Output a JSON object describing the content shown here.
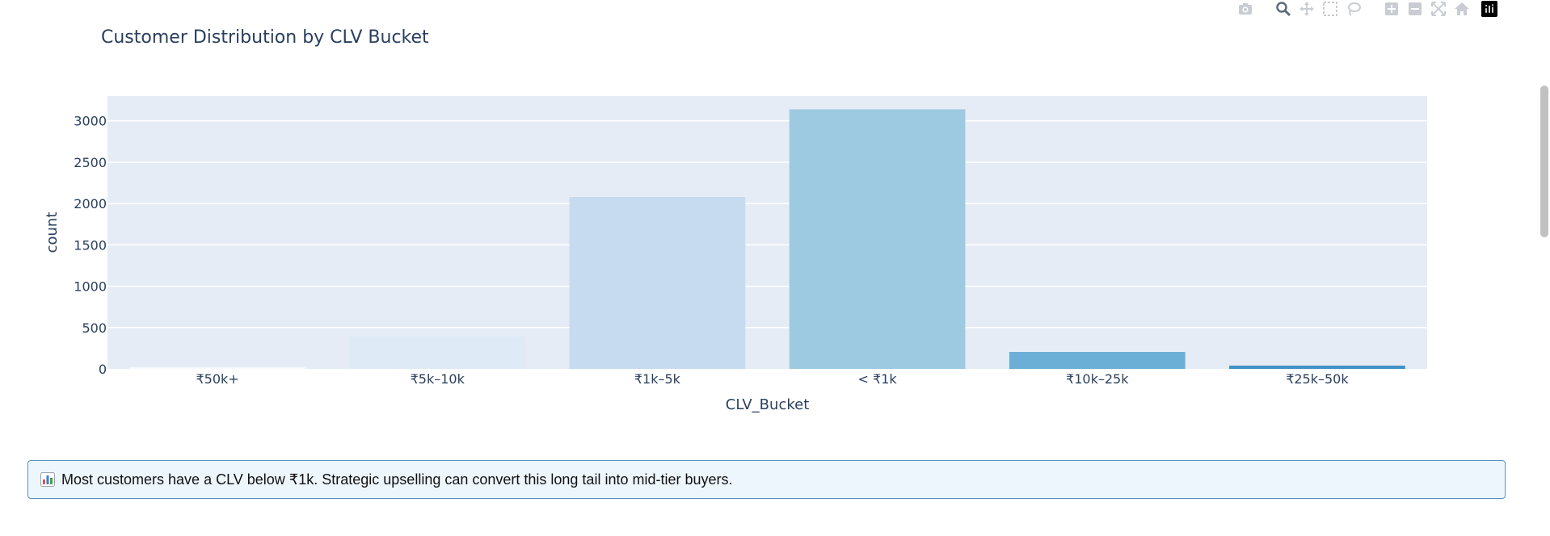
{
  "chart_data": {
    "type": "bar",
    "title": "Customer Distribution by CLV Bucket",
    "xlabel": "CLV_Bucket",
    "ylabel": "count",
    "categories": [
      "₹50k+",
      "₹5k–10k",
      "₹1k–5k",
      "< ₹1k",
      "₹10k–25k",
      "₹25k–50k"
    ],
    "values": [
      20,
      390,
      2080,
      3140,
      205,
      40
    ],
    "colors": [
      "#f7fbff",
      "#deebf7",
      "#c6dbef",
      "#9ecae1",
      "#6baed6",
      "#4292c6"
    ],
    "ylim": [
      0,
      3300
    ],
    "yticks": [
      0,
      500,
      1000,
      1500,
      2000,
      2500,
      3000
    ],
    "ytick_labels": [
      "0",
      "500",
      "1000",
      "1500",
      "2000",
      "2500",
      "3000"
    ],
    "grid": true,
    "plot_bg": "#e5ecf6",
    "legend": "none"
  },
  "modebar": {
    "icons": [
      "camera-icon",
      "zoom-icon",
      "pan-icon",
      "box-select-icon",
      "lasso-select-icon",
      "zoom-in-icon",
      "zoom-out-icon",
      "autoscale-icon",
      "reset-axes-home-icon",
      "plotly-logo-icon"
    ]
  },
  "insight": {
    "icon": "bar-chart-emoji-icon",
    "text": "Most customers have a CLV below ₹1k. Strategic upselling can convert this long tail into mid-tier buyers."
  }
}
